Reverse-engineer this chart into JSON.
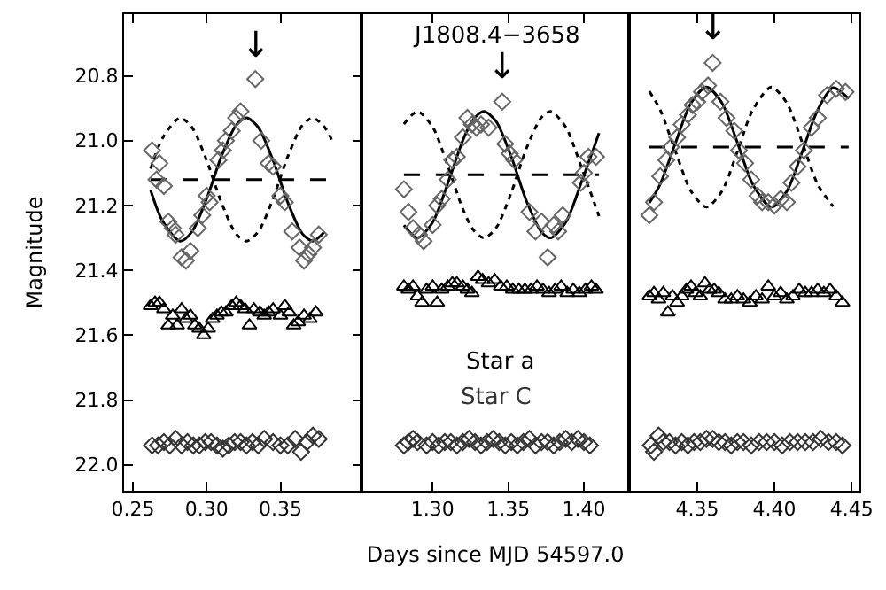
{
  "chart_data": [
    {
      "type": "scatter",
      "ylabel": "Magnitude",
      "xlim": [
        0.244,
        0.405
      ],
      "xticks": [
        {
          "value": 0.25,
          "label": "0.25"
        },
        {
          "value": 0.3,
          "label": "0.30"
        },
        {
          "value": 0.35,
          "label": "0.35"
        }
      ],
      "ylim": [
        22.08,
        20.61
      ],
      "yticks": [
        {
          "value": 20.8,
          "label": "20.8"
        },
        {
          "value": 21.0,
          "label": "21.0"
        },
        {
          "value": 21.2,
          "label": "21.2"
        },
        {
          "value": 21.4,
          "label": "21.4"
        },
        {
          "value": 21.6,
          "label": "21.6"
        },
        {
          "value": 21.8,
          "label": "21.8"
        },
        {
          "value": 22.0,
          "label": "22.0"
        }
      ],
      "legend": false,
      "annotations": [
        "↓"
      ],
      "series": [
        {
          "type": "line",
          "line_style": "dotted",
          "color": "#000000",
          "x": [
            0.262,
            0.27,
            0.282,
            0.29,
            0.3,
            0.31,
            0.32,
            0.327,
            0.335,
            0.345,
            0.355,
            0.365,
            0.372,
            0.38,
            0.385
          ],
          "values": [
            21.087,
            20.993,
            20.93,
            20.959,
            21.061,
            21.191,
            21.288,
            21.31,
            21.281,
            21.179,
            21.049,
            20.952,
            20.93,
            20.959,
            21.0
          ]
        },
        {
          "type": "line",
          "line_style": "dashed",
          "color": "#000000",
          "x": [
            0.262,
            0.382
          ],
          "values": [
            21.12,
            21.12
          ]
        },
        {
          "type": "line",
          "line_style": "solid",
          "color": "#000000",
          "x": [
            0.262,
            0.27,
            0.282,
            0.29,
            0.3,
            0.31,
            0.32,
            0.327,
            0.335,
            0.345,
            0.355,
            0.365,
            0.372,
            0.38
          ],
          "values": [
            21.153,
            21.247,
            21.31,
            21.281,
            21.179,
            21.049,
            20.952,
            20.93,
            20.959,
            21.061,
            21.191,
            21.288,
            21.31,
            21.281
          ]
        },
        {
          "marker": "diamond",
          "color": "#666666",
          "x": [
            0.263,
            0.266,
            0.268,
            0.271,
            0.274,
            0.277,
            0.279,
            0.283,
            0.286,
            0.289,
            0.294,
            0.297,
            0.3,
            0.302,
            0.308,
            0.311,
            0.313,
            0.317,
            0.32,
            0.323,
            0.333,
            0.337,
            0.342,
            0.345,
            0.35,
            0.353,
            0.358,
            0.363,
            0.366,
            0.369,
            0.372,
            0.376
          ],
          "values": [
            21.03,
            21.12,
            21.07,
            21.14,
            21.25,
            21.27,
            21.29,
            21.36,
            21.37,
            21.34,
            21.27,
            21.23,
            21.17,
            21.19,
            21.06,
            21.03,
            21.0,
            20.97,
            20.93,
            20.91,
            20.81,
            21.0,
            21.07,
            21.08,
            21.17,
            21.19,
            21.28,
            21.33,
            21.37,
            21.35,
            21.33,
            21.29
          ]
        },
        {
          "marker": "triangle",
          "color": "#000000",
          "x": [
            0.262,
            0.265,
            0.268,
            0.271,
            0.274,
            0.277,
            0.28,
            0.283,
            0.286,
            0.289,
            0.292,
            0.295,
            0.298,
            0.301,
            0.304,
            0.307,
            0.31,
            0.313,
            0.317,
            0.32,
            0.323,
            0.326,
            0.329,
            0.332,
            0.336,
            0.339,
            0.342,
            0.345,
            0.35,
            0.353,
            0.356,
            0.359,
            0.362,
            0.366,
            0.37,
            0.374
          ],
          "values": [
            21.51,
            21.5,
            21.5,
            21.52,
            21.57,
            21.54,
            21.57,
            21.52,
            21.55,
            21.54,
            21.57,
            21.58,
            21.6,
            21.58,
            21.55,
            21.54,
            21.53,
            21.53,
            21.51,
            21.5,
            21.51,
            21.52,
            21.57,
            21.52,
            21.53,
            21.54,
            21.53,
            21.52,
            21.54,
            21.51,
            21.53,
            21.57,
            21.56,
            21.54,
            21.55,
            21.53
          ]
        },
        {
          "marker": "diamond",
          "color": "#333333",
          "x": [
            0.263,
            0.267,
            0.271,
            0.275,
            0.279,
            0.283,
            0.287,
            0.291,
            0.295,
            0.299,
            0.303,
            0.307,
            0.311,
            0.315,
            0.319,
            0.323,
            0.327,
            0.331,
            0.335,
            0.339,
            0.345,
            0.35,
            0.355,
            0.36,
            0.364,
            0.368,
            0.372,
            0.376
          ],
          "values": [
            21.94,
            21.94,
            21.93,
            21.94,
            21.92,
            21.94,
            21.93,
            21.94,
            21.94,
            21.93,
            21.93,
            21.94,
            21.95,
            21.94,
            21.93,
            21.93,
            21.94,
            21.93,
            21.94,
            21.92,
            21.93,
            21.94,
            21.94,
            21.92,
            21.96,
            21.93,
            21.91,
            21.92
          ]
        }
      ]
    },
    {
      "type": "scatter",
      "title": "J1808.4−3658",
      "xlabel": "Days since MJD 54597.0",
      "xlim": [
        1.253,
        1.43
      ],
      "xticks": [
        {
          "value": 1.3,
          "label": "1.30"
        },
        {
          "value": 1.35,
          "label": "1.35"
        },
        {
          "value": 1.4,
          "label": "1.40"
        }
      ],
      "ylim": [
        22.08,
        20.61
      ],
      "tick_labels": "x",
      "legend": false,
      "annotations": [
        "↓"
      ],
      "series": [
        {
          "type": "line",
          "line_style": "dotted",
          "color": "#000000",
          "x": [
            1.281,
            1.29,
            1.3,
            1.31,
            1.32,
            1.327,
            1.334,
            1.342,
            1.352,
            1.362,
            1.372,
            1.378,
            1.388,
            1.398,
            1.41
          ],
          "values": [
            20.949,
            20.91,
            20.958,
            21.078,
            21.211,
            21.276,
            21.3,
            21.269,
            21.16,
            21.024,
            20.928,
            20.91,
            20.958,
            21.077,
            21.233
          ]
        },
        {
          "type": "line",
          "line_style": "dashed",
          "color": "#000000",
          "x": [
            1.281,
            1.41
          ],
          "values": [
            21.105,
            21.105
          ]
        },
        {
          "type": "line",
          "line_style": "solid",
          "color": "#000000",
          "x": [
            1.281,
            1.29,
            1.3,
            1.31,
            1.32,
            1.327,
            1.334,
            1.342,
            1.352,
            1.362,
            1.372,
            1.378,
            1.388,
            1.398,
            1.41
          ],
          "values": [
            21.261,
            21.3,
            21.252,
            21.132,
            20.999,
            20.934,
            20.91,
            20.941,
            21.05,
            21.186,
            21.282,
            21.3,
            21.252,
            21.133,
            20.977
          ]
        },
        {
          "marker": "diamond",
          "color": "#666666",
          "x": [
            1.281,
            1.284,
            1.287,
            1.291,
            1.294,
            1.3,
            1.303,
            1.306,
            1.31,
            1.313,
            1.316,
            1.32,
            1.323,
            1.326,
            1.329,
            1.332,
            1.337,
            1.346,
            1.348,
            1.351,
            1.354,
            1.364,
            1.368,
            1.372,
            1.376,
            1.38,
            1.383,
            1.386,
            1.398,
            1.4,
            1.403,
            1.408
          ],
          "values": [
            21.15,
            21.22,
            21.27,
            21.29,
            21.31,
            21.26,
            21.2,
            21.18,
            21.12,
            21.06,
            21.05,
            20.99,
            20.93,
            20.95,
            20.96,
            20.95,
            20.96,
            20.88,
            21.01,
            21.04,
            21.06,
            21.22,
            21.28,
            21.25,
            21.36,
            21.26,
            21.28,
            21.23,
            21.13,
            21.1,
            21.05,
            21.05
          ]
        },
        {
          "name": "Star a",
          "marker": "triangle",
          "color": "#000000",
          "x": [
            1.281,
            1.284,
            1.287,
            1.29,
            1.293,
            1.296,
            1.3,
            1.303,
            1.306,
            1.31,
            1.313,
            1.316,
            1.32,
            1.323,
            1.326,
            1.33,
            1.333,
            1.337,
            1.341,
            1.345,
            1.349,
            1.353,
            1.357,
            1.361,
            1.365,
            1.369,
            1.373,
            1.377,
            1.381,
            1.385,
            1.389,
            1.393,
            1.397,
            1.401,
            1.405,
            1.408
          ],
          "values": [
            21.45,
            21.46,
            21.45,
            21.48,
            21.5,
            21.46,
            21.45,
            21.5,
            21.46,
            21.45,
            21.44,
            21.44,
            21.45,
            21.46,
            21.47,
            21.42,
            21.43,
            21.44,
            21.43,
            21.45,
            21.45,
            21.46,
            21.46,
            21.46,
            21.46,
            21.45,
            21.46,
            21.47,
            21.46,
            21.45,
            21.47,
            21.46,
            21.47,
            21.46,
            21.45,
            21.46
          ]
        },
        {
          "name": "Star C",
          "marker": "diamond",
          "color": "#333333",
          "x": [
            1.281,
            1.284,
            1.287,
            1.29,
            1.296,
            1.3,
            1.304,
            1.308,
            1.312,
            1.316,
            1.32,
            1.324,
            1.328,
            1.332,
            1.336,
            1.34,
            1.344,
            1.348,
            1.352,
            1.356,
            1.36,
            1.364,
            1.368,
            1.372,
            1.376,
            1.38,
            1.384,
            1.388,
            1.392,
            1.396,
            1.4,
            1.404
          ],
          "values": [
            21.94,
            21.93,
            21.92,
            21.93,
            21.94,
            21.93,
            21.94,
            21.93,
            21.93,
            21.94,
            21.93,
            21.92,
            21.93,
            21.94,
            21.93,
            21.92,
            21.93,
            21.94,
            21.93,
            21.94,
            21.93,
            21.92,
            21.94,
            21.93,
            21.93,
            21.94,
            21.93,
            21.92,
            21.93,
            21.92,
            21.93,
            21.94
          ]
        }
      ]
    },
    {
      "type": "scatter",
      "xlim": [
        4.306,
        4.455
      ],
      "xticks": [
        {
          "value": 4.35,
          "label": "4.35"
        },
        {
          "value": 4.4,
          "label": "4.40"
        },
        {
          "value": 4.45,
          "label": "4.45"
        }
      ],
      "ylim": [
        22.08,
        20.61
      ],
      "tick_labels": "x",
      "legend": false,
      "annotations": [
        "↓"
      ],
      "series": [
        {
          "type": "line",
          "line_style": "dotted",
          "color": "#000000",
          "x": [
            4.319,
            4.326,
            4.336,
            4.346,
            4.356,
            4.366,
            4.376,
            4.386,
            4.398,
            4.408,
            4.418,
            4.428,
            4.438
          ],
          "values": [
            20.848,
            20.905,
            21.034,
            21.156,
            21.205,
            21.156,
            21.034,
            20.905,
            20.835,
            20.884,
            21.006,
            21.135,
            21.203
          ]
        },
        {
          "type": "line",
          "line_style": "dashed",
          "color": "#000000",
          "x": [
            4.319,
            4.448
          ],
          "values": [
            21.02,
            21.02
          ]
        },
        {
          "type": "line",
          "line_style": "solid",
          "color": "#000000",
          "x": [
            4.319,
            4.326,
            4.336,
            4.346,
            4.356,
            4.366,
            4.376,
            4.386,
            4.398,
            4.408,
            4.418,
            4.428,
            4.438,
            4.448
          ],
          "values": [
            21.192,
            21.135,
            21.006,
            20.884,
            20.835,
            20.884,
            21.006,
            21.135,
            21.205,
            21.156,
            21.034,
            20.905,
            20.837,
            20.871
          ]
        },
        {
          "marker": "diamond",
          "color": "#666666",
          "x": [
            4.319,
            4.322,
            4.326,
            4.33,
            4.333,
            4.337,
            4.34,
            4.344,
            4.347,
            4.35,
            4.353,
            4.357,
            4.36,
            4.365,
            4.369,
            4.374,
            4.377,
            4.381,
            4.385,
            4.389,
            4.392,
            4.396,
            4.4,
            4.404,
            4.408,
            4.411,
            4.415,
            4.419,
            4.424,
            4.428,
            4.434,
            4.44,
            4.446
          ],
          "values": [
            21.23,
            21.19,
            21.11,
            21.06,
            21.02,
            20.99,
            20.95,
            20.92,
            20.89,
            20.88,
            20.85,
            20.83,
            20.76,
            20.88,
            20.93,
            20.97,
            21.03,
            21.07,
            21.12,
            21.17,
            21.19,
            21.19,
            21.2,
            21.18,
            21.19,
            21.13,
            21.08,
            21.03,
            20.96,
            20.93,
            20.86,
            20.84,
            20.85
          ]
        },
        {
          "marker": "triangle",
          "color": "#000000",
          "x": [
            4.319,
            4.322,
            4.325,
            4.328,
            4.331,
            4.334,
            4.337,
            4.34,
            4.343,
            4.346,
            4.349,
            4.352,
            4.355,
            4.358,
            4.361,
            4.364,
            4.368,
            4.372,
            4.376,
            4.38,
            4.384,
            4.388,
            4.392,
            4.396,
            4.4,
            4.404,
            4.408,
            4.412,
            4.416,
            4.42,
            4.424,
            4.428,
            4.432,
            4.436,
            4.44,
            4.444
          ],
          "values": [
            21.48,
            21.47,
            21.49,
            21.47,
            21.53,
            21.48,
            21.5,
            21.48,
            21.46,
            21.45,
            21.47,
            21.48,
            21.44,
            21.46,
            21.46,
            21.47,
            21.49,
            21.49,
            21.48,
            21.49,
            21.5,
            21.48,
            21.49,
            21.45,
            21.48,
            21.47,
            21.49,
            21.48,
            21.46,
            21.47,
            21.47,
            21.46,
            21.47,
            21.46,
            21.48,
            21.5
          ]
        },
        {
          "marker": "diamond",
          "color": "#333333",
          "x": [
            4.32,
            4.322,
            4.325,
            4.328,
            4.332,
            4.336,
            4.34,
            4.344,
            4.348,
            4.352,
            4.356,
            4.36,
            4.364,
            4.368,
            4.372,
            4.376,
            4.38,
            4.385,
            4.39,
            4.395,
            4.4,
            4.405,
            4.41,
            4.415,
            4.42,
            4.425,
            4.43,
            4.435,
            4.44,
            4.444
          ],
          "values": [
            21.94,
            21.96,
            21.91,
            21.93,
            21.93,
            21.94,
            21.93,
            21.94,
            21.93,
            21.93,
            21.92,
            21.92,
            21.93,
            21.93,
            21.94,
            21.93,
            21.93,
            21.94,
            21.93,
            21.93,
            21.93,
            21.94,
            21.93,
            21.93,
            21.93,
            21.93,
            21.92,
            21.93,
            21.93,
            21.94
          ]
        }
      ]
    }
  ]
}
